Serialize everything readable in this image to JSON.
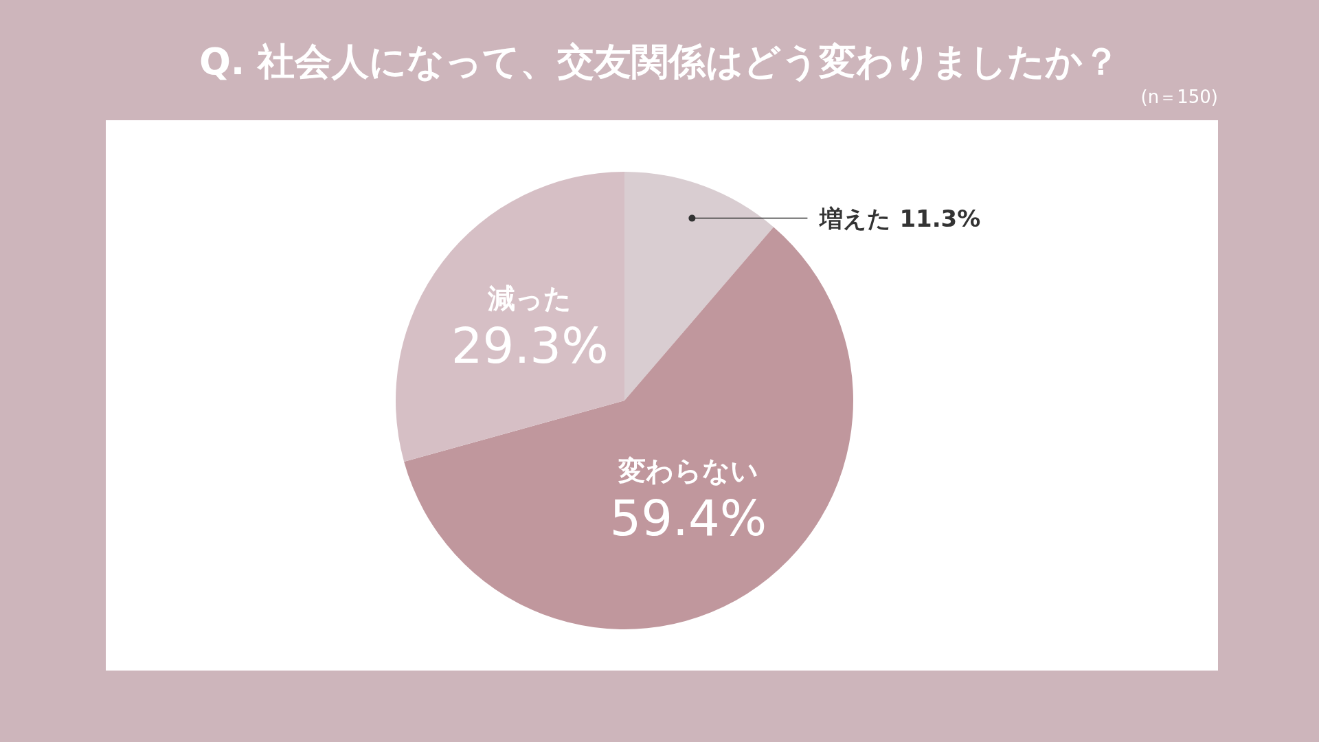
{
  "chart_data": {
    "type": "pie",
    "title": "Q. 社会人になって、交友関係はどう変わりましたか？",
    "subtitle": "(n＝150)",
    "categories": [
      "増えた",
      "変わらない",
      "減った"
    ],
    "values": [
      11.3,
      59.4,
      29.3
    ],
    "colors": [
      "#d9cdd1",
      "#c0979d",
      "#d6bfc5"
    ],
    "value_labels": [
      "11.3%",
      "59.4%",
      "29.3%"
    ]
  }
}
